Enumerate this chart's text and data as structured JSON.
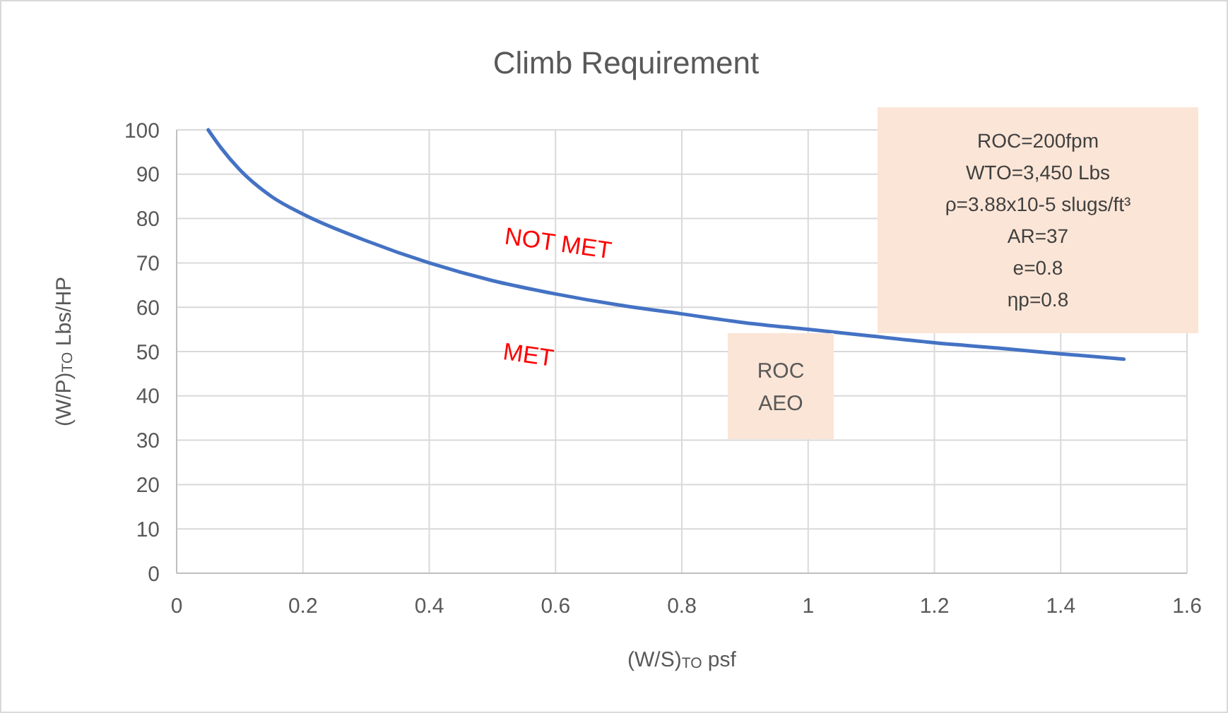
{
  "chart_data": {
    "type": "line",
    "title": "Climb Requirement",
    "xlabel": "(W/S)$_{TO}$ psf",
    "ylabel": "(W/P)$_{TO}$ Lbs/HP",
    "x": [
      0.05,
      0.07,
      0.1,
      0.15,
      0.2,
      0.3,
      0.4,
      0.5,
      0.6,
      0.7,
      0.8,
      0.9,
      1.0,
      1.1,
      1.2,
      1.3,
      1.4,
      1.5
    ],
    "series": [
      {
        "color": "#4472c4",
        "values": [
          100,
          96,
          91,
          85,
          81,
          75,
          70,
          66,
          63,
          60.5,
          58.5,
          56.5,
          55,
          53.5,
          52,
          50.8,
          49.5,
          48.3
        ]
      }
    ],
    "xlim": [
      0,
      1.6
    ],
    "xticks": [
      0,
      0.2,
      0.4,
      0.6,
      0.8,
      1,
      1.2,
      1.4,
      1.6
    ],
    "ylim": [
      0,
      100
    ],
    "yticks": [
      0,
      10,
      20,
      30,
      40,
      50,
      60,
      70,
      80,
      90,
      100
    ],
    "grid": true,
    "marker": "none",
    "line_style": "solid",
    "annotations": [
      "ROC=200fpm\nWTO=3,450 Lbs\nρ=3.88x10-5 slugs/ft³\nAR=37\ne=0.8\nηp=0.8",
      "ROC\nAEO",
      "NOT MET",
      "MET"
    ]
  }
}
